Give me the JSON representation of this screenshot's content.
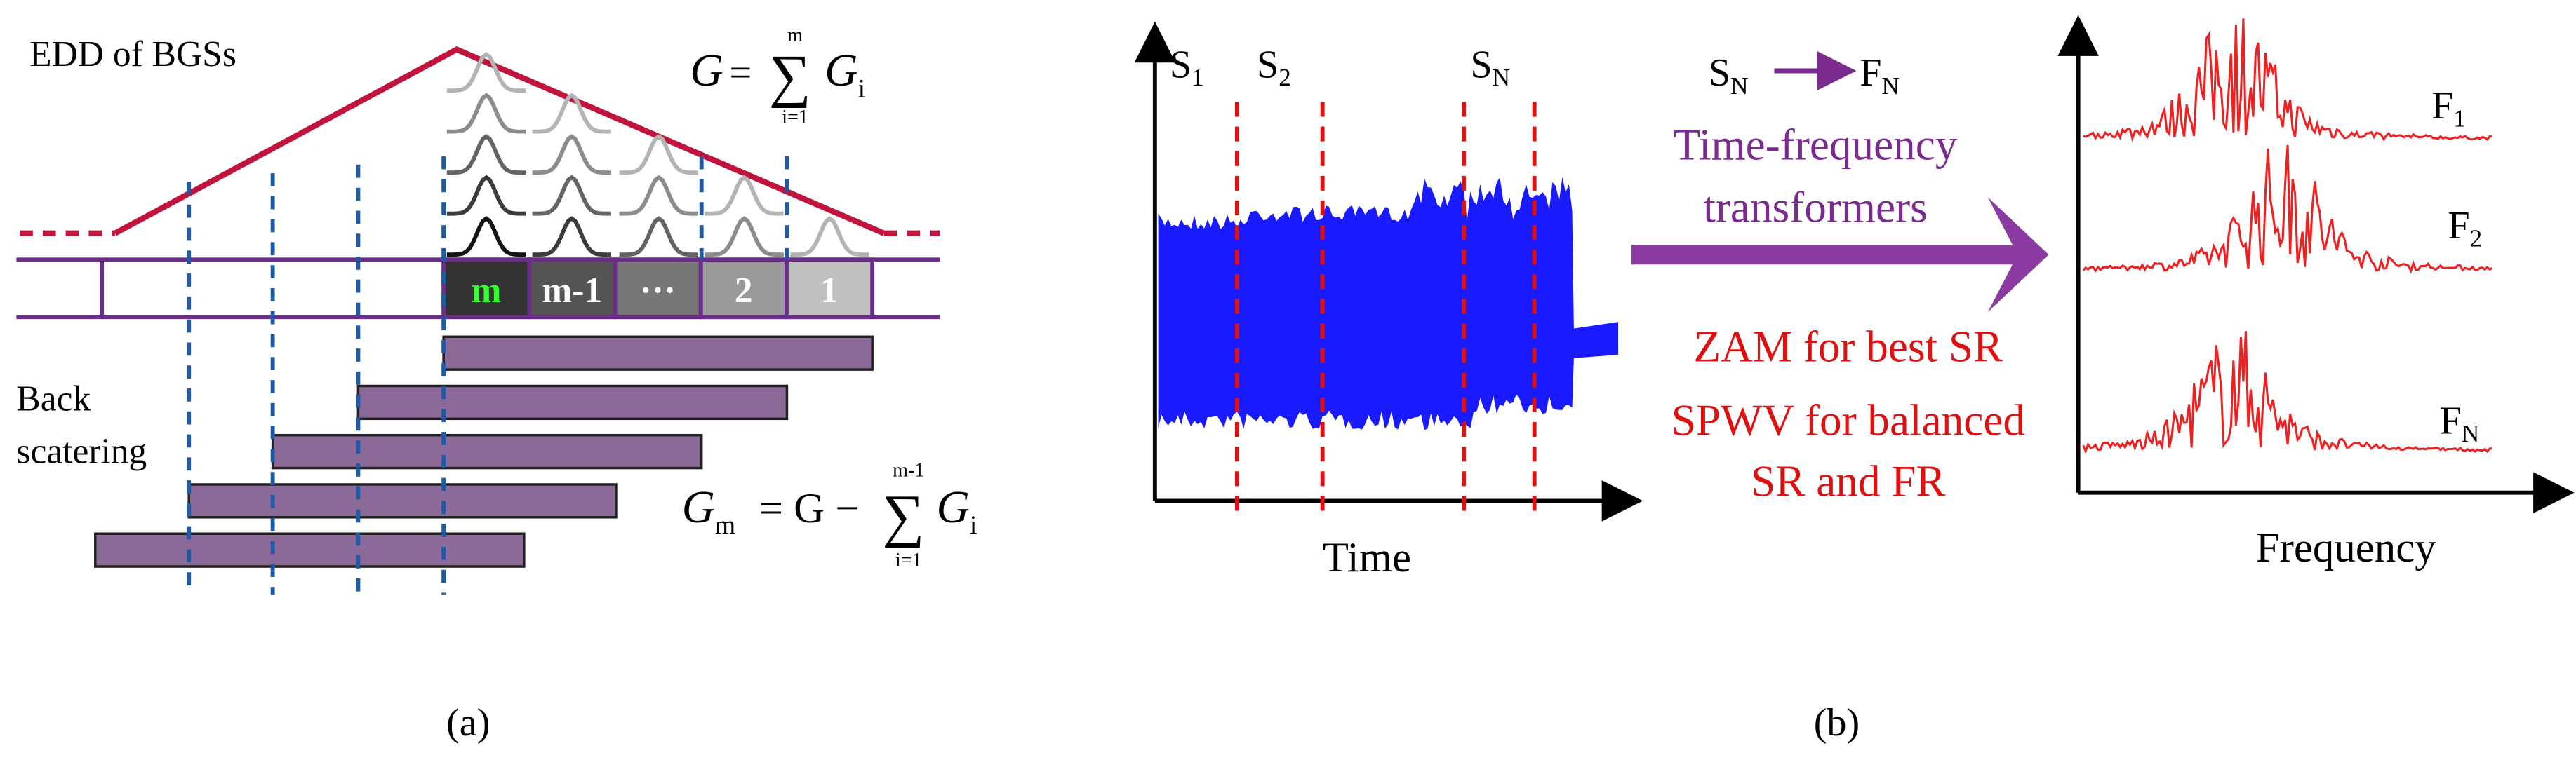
{
  "panel_a": {
    "title": "EDD of BGSs",
    "formula_g": {
      "lhs": "G",
      "op": "=",
      "sigma": "∑",
      "upper": "m",
      "lower": "i=1",
      "term": "G",
      "term_sub": "i"
    },
    "cells": [
      "m",
      "m-1",
      "···",
      "2",
      "1"
    ],
    "backscatter_label": [
      "Back",
      "scatering"
    ],
    "formula_gm": {
      "lhs": "G",
      "lhs_sub": "m",
      "op": "= G −",
      "sigma": "∑",
      "upper": "m-1",
      "lower": "i=1",
      "term": "G",
      "term_sub": "i"
    },
    "caption": "(a)"
  },
  "panel_b": {
    "segments": [
      {
        "base": "S",
        "sub": "1"
      },
      {
        "base": "S",
        "sub": "2"
      },
      {
        "base": "S",
        "sub": "N"
      }
    ],
    "time_label": "Time",
    "mapping": {
      "from_base": "S",
      "from_sub": "N",
      "to_base": "F",
      "to_sub": "N"
    },
    "transform_label": [
      "Time-frequency",
      "transformers"
    ],
    "methods": [
      "ZAM for best SR",
      "SPWV for balanced",
      "SR and FR"
    ],
    "spectra": [
      {
        "base": "F",
        "sub": "1"
      },
      {
        "base": "F",
        "sub": "2"
      },
      {
        "base": "F",
        "sub": "N"
      }
    ],
    "frequency_label": "Frequency",
    "caption": "(b)"
  }
}
